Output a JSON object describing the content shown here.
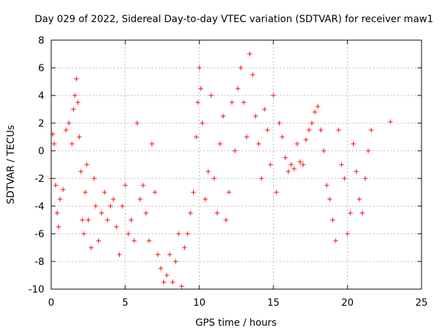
{
  "chart_data": {
    "type": "scatter",
    "title": "Day 029 of 2022, Sidereal Day-to-day VTEC variation (SDTVAR) for receiver maw1",
    "xlabel": "GPS time / hours",
    "ylabel": "SDTVAR / TECUs",
    "xlim": [
      0,
      25
    ],
    "ylim": [
      -10,
      8
    ],
    "xticks": [
      0,
      5,
      10,
      15,
      20,
      25
    ],
    "yticks": [
      -10,
      -8,
      -6,
      -4,
      -2,
      0,
      2,
      4,
      6,
      8
    ],
    "xtick_labels": [
      "0",
      "5",
      "10",
      "15",
      "20",
      "25"
    ],
    "ytick_labels": [
      "-10",
      "-8",
      "-6",
      "-4",
      "-2",
      "0",
      "2",
      "4",
      "6",
      "8"
    ],
    "grid": true,
    "marker": "+",
    "color": "#ff0000",
    "series": [
      {
        "name": "SDTVAR",
        "x": [
          0.0,
          0.1,
          0.2,
          0.3,
          0.4,
          0.5,
          0.6,
          0.8,
          1.0,
          1.2,
          1.4,
          1.5,
          1.6,
          1.7,
          1.8,
          1.9,
          2.0,
          2.1,
          2.2,
          2.3,
          2.4,
          2.5,
          2.7,
          2.9,
          3.0,
          3.2,
          3.4,
          3.6,
          3.8,
          4.0,
          4.2,
          4.4,
          4.6,
          4.8,
          5.0,
          5.2,
          5.4,
          5.6,
          5.8,
          6.0,
          6.2,
          6.4,
          6.6,
          6.8,
          7.0,
          7.2,
          7.4,
          7.6,
          7.8,
          8.0,
          8.2,
          8.4,
          8.6,
          8.8,
          9.0,
          9.2,
          9.4,
          9.6,
          9.8,
          9.9,
          10.0,
          10.1,
          10.2,
          10.4,
          10.6,
          10.8,
          11.0,
          11.2,
          11.4,
          11.6,
          11.8,
          12.0,
          12.2,
          12.4,
          12.6,
          12.8,
          13.0,
          13.2,
          13.4,
          13.6,
          13.8,
          14.0,
          14.2,
          14.4,
          14.6,
          14.8,
          15.0,
          15.2,
          15.4,
          15.6,
          15.8,
          16.0,
          16.2,
          16.4,
          16.6,
          16.8,
          17.0,
          17.2,
          17.4,
          17.6,
          17.8,
          18.0,
          18.2,
          18.4,
          18.6,
          18.8,
          19.0,
          19.2,
          19.4,
          19.6,
          19.8,
          20.0,
          20.2,
          20.4,
          20.6,
          20.8,
          21.0,
          21.2,
          21.4,
          21.6,
          22.9
        ],
        "y": [
          -2.0,
          1.2,
          0.5,
          -2.5,
          -4.5,
          -5.5,
          -3.5,
          -2.8,
          1.5,
          2.0,
          0.5,
          3.0,
          4.0,
          5.2,
          3.5,
          1.0,
          -1.5,
          -5.0,
          -6.0,
          -3.0,
          -1.0,
          -5.0,
          -7.0,
          -2.0,
          -4.0,
          -6.5,
          -4.5,
          -3.0,
          -5.0,
          -4.0,
          -3.5,
          -5.5,
          -7.5,
          -4.0,
          -2.5,
          -6.0,
          -5.0,
          -6.5,
          2.0,
          -3.5,
          -2.5,
          -4.5,
          -6.5,
          0.5,
          -3.0,
          -7.5,
          -8.5,
          -9.5,
          -9.0,
          -7.5,
          -9.5,
          -8.0,
          -6.0,
          -9.8,
          -7.0,
          -6.0,
          -4.5,
          -3.0,
          1.0,
          3.5,
          6.0,
          4.5,
          2.0,
          -3.5,
          -1.5,
          4.0,
          -2.0,
          -4.5,
          0.5,
          2.5,
          -5.0,
          -3.0,
          3.5,
          0.0,
          4.5,
          6.0,
          3.5,
          1.0,
          7.0,
          5.5,
          2.5,
          0.5,
          -2.0,
          3.0,
          1.5,
          -1.0,
          4.0,
          -3.0,
          2.0,
          1.0,
          -0.5,
          -1.5,
          -1.0,
          -1.3,
          0.5,
          -0.8,
          -1.0,
          0.8,
          1.5,
          2.0,
          2.8,
          3.2,
          1.5,
          0.0,
          -2.5,
          -3.5,
          -5.0,
          -6.5,
          1.5,
          -1.0,
          -2.0,
          -6.0,
          -4.5,
          0.5,
          -1.5,
          -3.5,
          -4.5,
          -2.0,
          0.0,
          1.5,
          2.1
        ]
      }
    ]
  }
}
